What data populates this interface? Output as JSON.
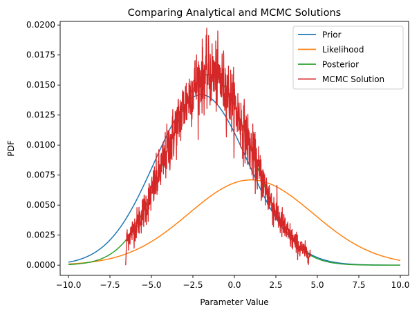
{
  "chart_data": {
    "type": "line",
    "title": "Comparing Analytical and MCMC Solutions",
    "xlabel": "Parameter Value",
    "ylabel": "PDF",
    "xlim": [
      -10.5,
      10.5
    ],
    "ylim": [
      -0.00085,
      0.0203
    ],
    "x_ticks": [
      -10.0,
      -7.5,
      -5.0,
      -2.5,
      0.0,
      2.5,
      5.0,
      7.5,
      10.0
    ],
    "x_tick_labels": [
      "−10.0",
      "−7.5",
      "−5.0",
      "−2.5",
      "0.0",
      "2.5",
      "5.0",
      "7.5",
      "10.0"
    ],
    "y_ticks": [
      0.0,
      0.0025,
      0.005,
      0.0075,
      0.01,
      0.0125,
      0.015,
      0.0175,
      0.02
    ],
    "y_tick_labels": [
      "0.0000",
      "0.0025",
      "0.0050",
      "0.0075",
      "0.0100",
      "0.0125",
      "0.0150",
      "0.0175",
      "0.0200"
    ],
    "grid": false,
    "legend_position": "top-right",
    "x_range": [
      -10,
      10
    ],
    "series": [
      {
        "name": "Prior",
        "color": "#1f77b4",
        "kind": "normal",
        "mean": -2.0,
        "sd": 2.81,
        "scale": 0.1,
        "peak": 0.0142
      },
      {
        "name": "Likelihood",
        "color": "#ff7f0e",
        "kind": "normal",
        "mean": 1.0,
        "sd": 3.74,
        "scale": 0.0667,
        "peak": 0.0071
      },
      {
        "name": "Posterior",
        "color": "#2ca02c",
        "kind": "normal",
        "mean": -1.5,
        "sd": 2.5,
        "scale": 0.1,
        "peak": 0.0159
      },
      {
        "name": "MCMC Solution",
        "color": "#d62728",
        "kind": "noisy-normal",
        "mean": -1.5,
        "sd": 2.5,
        "scale": 0.1,
        "peak": 0.0159,
        "x_range": [
          -6.5,
          4.6
        ],
        "max_observed": 0.0192
      }
    ]
  }
}
